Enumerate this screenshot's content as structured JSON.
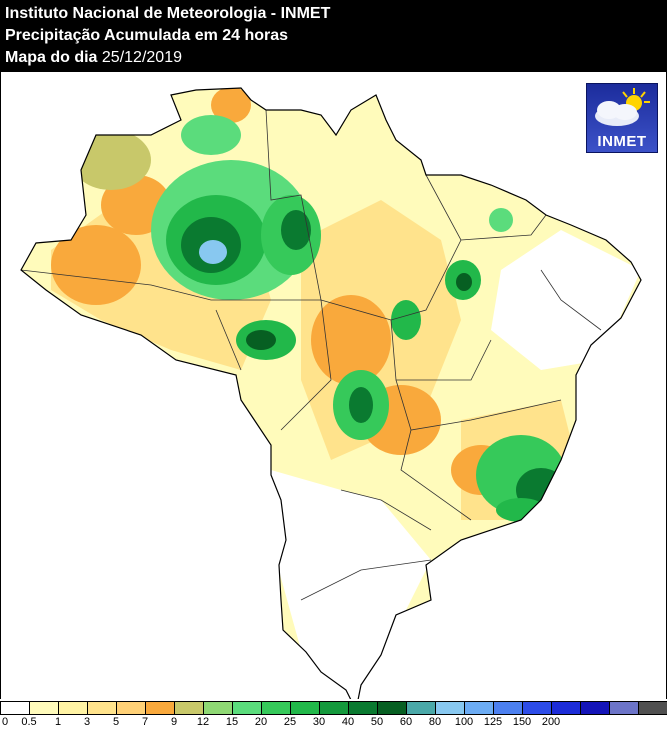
{
  "header": {
    "line1": "Instituto Nacional de Meteorologia - INMET",
    "line2": "Precipitação Acumulada em 24 horas",
    "line3_bold": "Mapa do dia",
    "line3_date": "25/12/2019"
  },
  "logo": {
    "text": "INMET",
    "icon": "cloud-sun-icon"
  },
  "legend": {
    "colors": [
      "#ffffff",
      "#fffbbb",
      "#fff3a4",
      "#ffe38c",
      "#ffd177",
      "#f9a93c",
      "#c8c86a",
      "#8fd874",
      "#5bdc7c",
      "#36c95a",
      "#22b84a",
      "#14993c",
      "#0a7a30",
      "#075f22",
      "#4aa8a8",
      "#88c8f0",
      "#6cacf4",
      "#4c80f0",
      "#2c4ce8",
      "#1c2cd8",
      "#1414b8",
      "#6c74c8",
      "#505050"
    ],
    "ticks": [
      "0",
      "0.5",
      "1",
      "3",
      "5",
      "7",
      "9",
      "12",
      "15",
      "20",
      "25",
      "30",
      "40",
      "50",
      "60",
      "80",
      "100",
      "125",
      "150",
      "200"
    ]
  }
}
